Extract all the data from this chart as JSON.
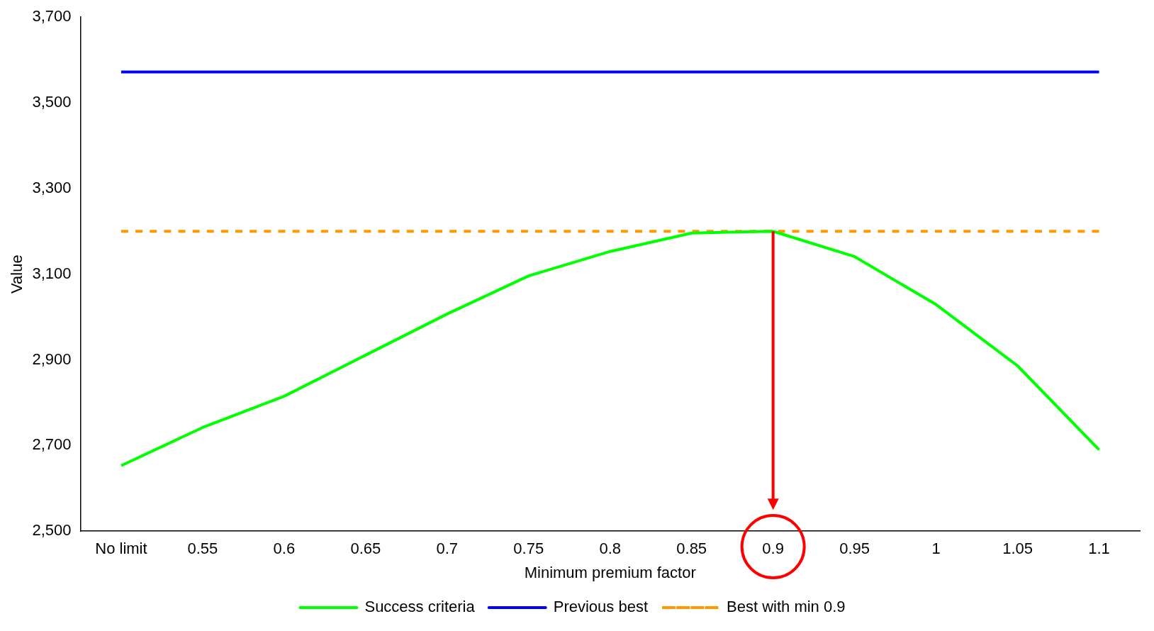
{
  "chart_data": {
    "type": "line",
    "xlabel": "Minimum premium factor",
    "ylabel": "Value",
    "categories": [
      "No limit",
      "0.55",
      "0.6",
      "0.65",
      "0.7",
      "0.75",
      "0.8",
      "0.85",
      "0.9",
      "0.95",
      "1",
      "1.05",
      "1.1"
    ],
    "series": [
      {
        "name": "Success criteria",
        "color": "#00ff00",
        "values": [
          2653,
          2742,
          2815,
          2911,
          3007,
          3096,
          3153,
          3196,
          3200,
          3141,
          3029,
          2886,
          2690
        ]
      },
      {
        "name": "Previous best",
        "color": "#0000ff",
        "values": [
          3572,
          3572,
          3572,
          3572,
          3572,
          3572,
          3572,
          3572,
          3572,
          3572,
          3572,
          3572,
          3572
        ]
      },
      {
        "name": "Best with min 0.9",
        "color": "#ff9900",
        "line_style": "dashed",
        "values": [
          3200,
          3200,
          3200,
          3200,
          3200,
          3200,
          3200,
          3200,
          3200,
          3200,
          3200,
          3200,
          3200
        ]
      }
    ],
    "ylim": [
      2500,
      3700
    ],
    "yticks": [
      {
        "value": 2500,
        "label": "2,500"
      },
      {
        "value": 2700,
        "label": "2,700"
      },
      {
        "value": 2900,
        "label": "2,900"
      },
      {
        "value": 3100,
        "label": "3,100"
      },
      {
        "value": 3300,
        "label": "3,300"
      },
      {
        "value": 3500,
        "label": "3,500"
      },
      {
        "value": 3700,
        "label": "3,700"
      }
    ],
    "grid": false,
    "legend": "bottom",
    "marker": "none",
    "line_style": "solid"
  }
}
